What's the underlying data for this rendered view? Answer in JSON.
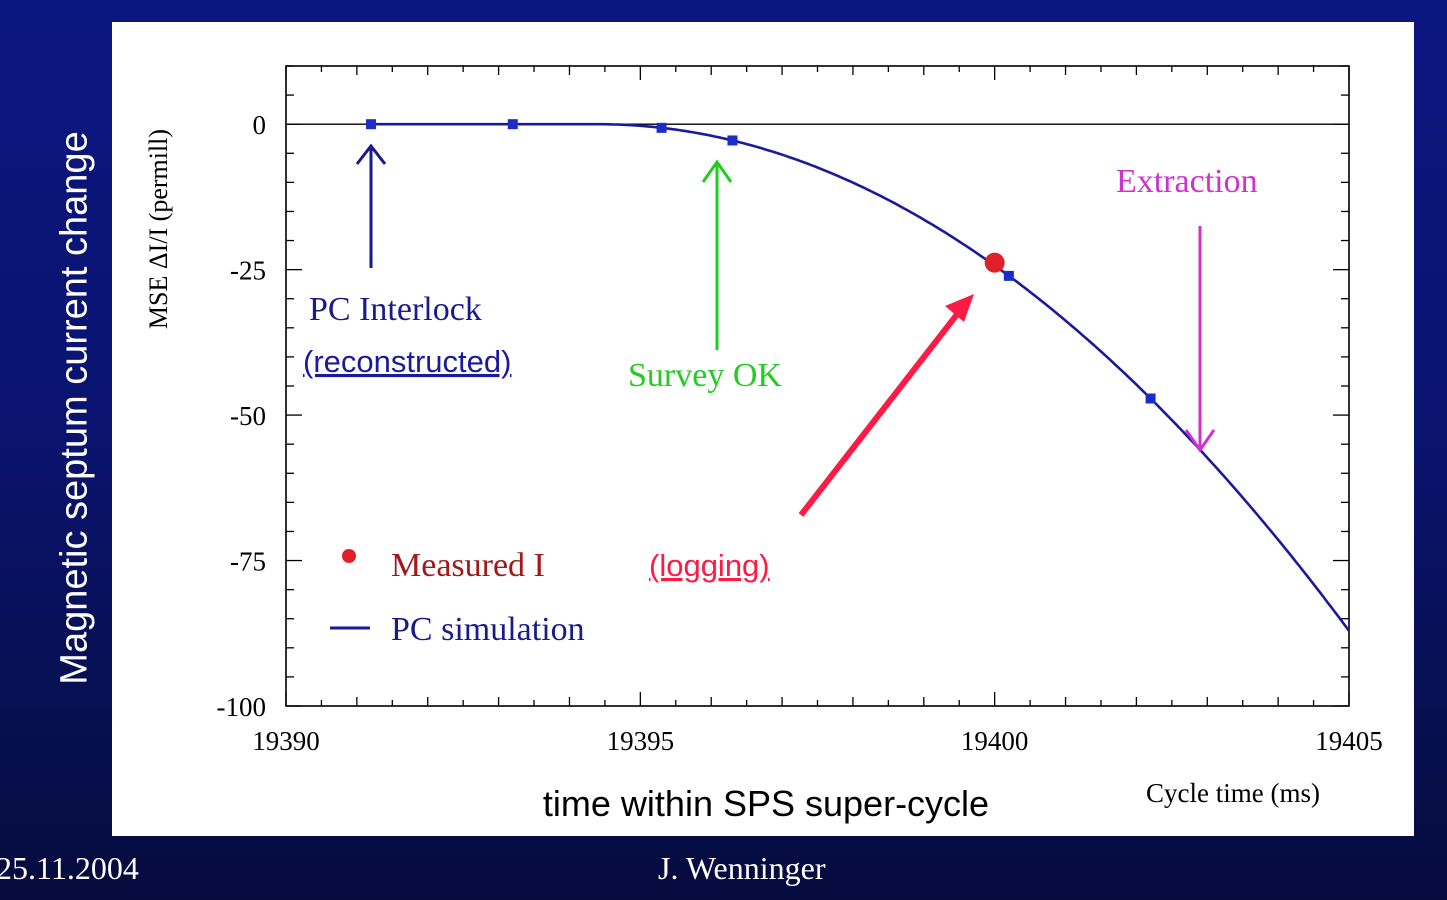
{
  "slide": {
    "ylabel": "Magnetic septum current change",
    "xlabel": "time within SPS super-cycle",
    "footer_date": "25.11.2004",
    "footer_author": "J. Wenninger"
  },
  "colors": {
    "background": "#0a1470",
    "curve": "#1a1a9a",
    "measured": "#e0202a",
    "survey": "#22cc22",
    "extraction": "#d030d0",
    "logging_arrow": "#ff1a44",
    "interlock": "#1a1a8a"
  },
  "chart_data": {
    "type": "line",
    "title": "",
    "xlabel": "Cycle time (ms)",
    "ylabel": "MSE ΔI/I (permill)",
    "xlim": [
      19390,
      19405
    ],
    "ylim": [
      -100,
      10
    ],
    "xticks": [
      "19390",
      "19395",
      "19400",
      "19405"
    ],
    "yticks": [
      "0",
      "-25",
      "-50",
      "-75",
      "-100"
    ],
    "series": [
      {
        "name": "PC simulation",
        "model": "quadratic from onset",
        "onset_x": 19394.4,
        "curvature": -0.775,
        "x_end": 19405,
        "markers_x": [
          19391.2,
          19393.2,
          19395.3,
          19396.3,
          19400.2,
          19402.2
        ]
      },
      {
        "name": "Measured I",
        "points": [
          {
            "x": 19400.0,
            "y": -23.8
          }
        ]
      }
    ],
    "annotations": {
      "interlock_line1": "PC Interlock",
      "interlock_line2": "(reconstructed)",
      "survey": "Survey OK",
      "extraction": "Extraction",
      "logging": "(logging)"
    },
    "legend": {
      "measured": "Measured I",
      "simulation": "PC simulation",
      "position": "bottom-left"
    }
  }
}
